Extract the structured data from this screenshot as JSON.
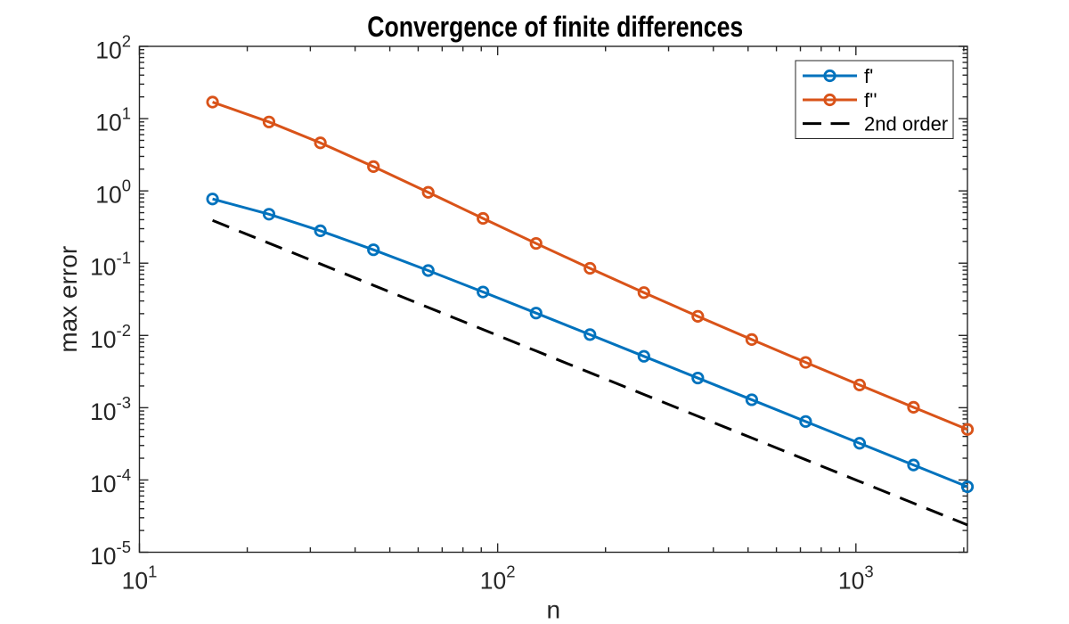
{
  "figure": {
    "background": "#ffffff"
  },
  "chart_data": {
    "type": "line",
    "title": "Convergence of finite differences",
    "xlabel": "n",
    "ylabel": "max error",
    "x_scale": "log",
    "y_scale": "log",
    "xlim": [
      10,
      2048
    ],
    "ylim": [
      1e-05,
      100
    ],
    "grid": false,
    "x": [
      16,
      23,
      32,
      45,
      64,
      91,
      128,
      181,
      256,
      362,
      512,
      724,
      1024,
      1448,
      2048
    ],
    "series": [
      {
        "name": "f'",
        "color": "#0072BD",
        "line_style": "solid",
        "marker": "circle",
        "values": [
          0.7728,
          0.4758,
          0.2804,
          0.1532,
          0.079,
          0.03993,
          0.0204,
          0.01026,
          0.005142,
          0.002575,
          0.001288,
          0.0006444,
          0.0003222,
          0.0001612,
          8.056e-05
        ]
      },
      {
        "name": "f''",
        "color": "#D95319",
        "line_style": "solid",
        "marker": "circle",
        "values": [
          16.93,
          8.989,
          4.62,
          2.17,
          0.9553,
          0.4164,
          0.1876,
          0.08491,
          0.03915,
          0.01839,
          0.008769,
          0.004235,
          0.002064,
          0.001014,
          0.0005002
        ]
      },
      {
        "name": "2nd order",
        "color": "#000000",
        "line_style": "dashed",
        "marker": "none",
        "values": [
          0.3906,
          0.189,
          0.09766,
          0.04938,
          0.02441,
          0.01208,
          0.006104,
          0.003052,
          0.001526,
          0.0007631,
          0.0003815,
          0.0001908,
          9.537e-05,
          4.769e-05,
          2.384e-05
        ]
      }
    ],
    "x_tick_exponents": [
      1,
      2,
      3
    ],
    "y_tick_exponents": [
      2,
      1,
      0,
      -1,
      -2,
      -3,
      -4,
      -5
    ],
    "legend": {
      "position": "northeast",
      "entries": [
        "f'",
        "f''",
        "2nd order"
      ]
    },
    "axis_color": "#262626",
    "tick_label_color": "#262626",
    "title_color": "#000000",
    "legend_text_color": "#000000"
  }
}
